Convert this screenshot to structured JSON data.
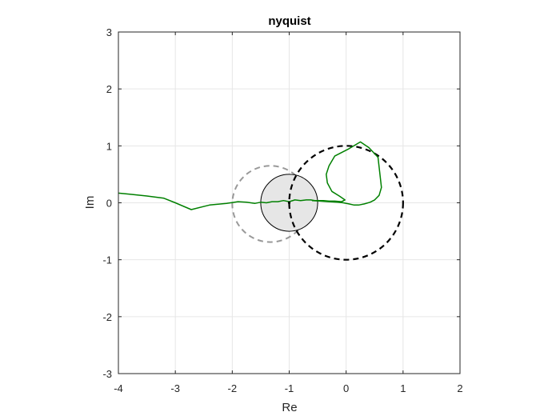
{
  "chart_data": {
    "type": "line",
    "title": "nyquist",
    "xlabel": "Re",
    "ylabel": "Im",
    "xlim": [
      -4,
      2
    ],
    "ylim": [
      -3,
      3
    ],
    "xticks": [
      -4,
      -3,
      -2,
      -1,
      0,
      1,
      2
    ],
    "yticks": [
      -3,
      -2,
      -1,
      0,
      1,
      2,
      3
    ],
    "grid": true,
    "colors": {
      "curve": "#008000",
      "unit_circle": "#000000",
      "dashed_circle": "#999999",
      "disk_fill": "#e6e6e6",
      "disk_edge": "#000000",
      "grid": "#e6e6e6",
      "axes": "#262626"
    },
    "unit_circle": {
      "center": [
        0,
        0
      ],
      "radius": 1,
      "style": "dashed"
    },
    "dashed_circle": {
      "center": [
        -1.33,
        -0.02
      ],
      "radius": 0.67,
      "style": "dashed"
    },
    "disk": {
      "center": [
        -1,
        0
      ],
      "radius": 0.5,
      "style": "filled"
    },
    "center_point": [
      -1,
      0
    ],
    "series": [
      {
        "x": [
          -4.0,
          -3.8,
          -3.5,
          -3.2,
          -3.0,
          -2.72,
          -2.4,
          -2.1,
          -1.9,
          -1.75,
          -1.6,
          -1.5,
          -1.4,
          -1.3,
          -1.2,
          -1.1,
          -1.0,
          -0.9,
          -0.8,
          -0.7,
          -0.62,
          -0.55,
          -0.5,
          -0.45,
          -0.4,
          -0.3,
          -0.2,
          -0.08,
          -0.02,
          -0.12,
          -0.25,
          -0.33,
          -0.35,
          -0.3,
          -0.2,
          0.05,
          0.25,
          0.4,
          0.56,
          0.62,
          0.58,
          0.5,
          0.42,
          0.32,
          0.22,
          0.14,
          0.05,
          -0.05,
          -0.15,
          -0.3,
          -0.45,
          -0.6
        ],
        "y": [
          0.17,
          0.15,
          0.12,
          0.08,
          0.0,
          -0.12,
          -0.04,
          -0.01,
          0.02,
          0.01,
          -0.01,
          0.01,
          0.0,
          0.02,
          0.02,
          0.04,
          0.02,
          0.05,
          0.04,
          0.05,
          0.05,
          0.04,
          0.04,
          0.04,
          0.04,
          0.03,
          0.03,
          0.02,
          0.05,
          0.12,
          0.2,
          0.35,
          0.5,
          0.65,
          0.82,
          0.95,
          1.07,
          0.97,
          0.8,
          0.27,
          0.13,
          0.05,
          0.01,
          -0.02,
          -0.04,
          -0.04,
          -0.02,
          0.0,
          0.01,
          0.02,
          0.03,
          0.04
        ]
      }
    ]
  }
}
